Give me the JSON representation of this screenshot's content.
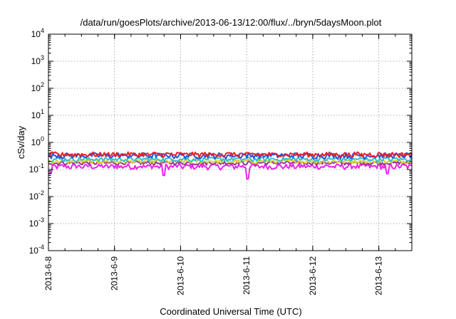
{
  "chart_data": {
    "type": "line",
    "title": "/data/run/goesPlots/archive/2013-06-13/12:00/flux/../bryn/5daysMoon.plot",
    "xlabel": "Coordinated Universal Time (UTC)",
    "ylabel": "cSv/day",
    "yscale": "log",
    "ylim": [
      0.0001,
      10000
    ],
    "y_ticks": [
      {
        "base": "10",
        "exp": "-4"
      },
      {
        "base": "10",
        "exp": "-3"
      },
      {
        "base": "10",
        "exp": "-2"
      },
      {
        "base": "10",
        "exp": "-1"
      },
      {
        "base": "10",
        "exp": "0"
      },
      {
        "base": "10",
        "exp": "1"
      },
      {
        "base": "10",
        "exp": "2"
      },
      {
        "base": "10",
        "exp": "3"
      },
      {
        "base": "10",
        "exp": "4"
      }
    ],
    "xlim": [
      "2013-06-08",
      "2013-06-13 12:00"
    ],
    "x_ticks": [
      "2013-6-8",
      "2013-6-9",
      "2013-6-10",
      "2013-6-11",
      "2013-6-12",
      "2013-6-13"
    ],
    "grid": true,
    "series": [
      {
        "color": "#e8202a",
        "level": 0.36,
        "jitter": 0.09
      },
      {
        "color": "#2255dd",
        "level": 0.33,
        "jitter": 0.1
      },
      {
        "color": "#33c0c8",
        "level": 0.24,
        "jitter": 0.08
      },
      {
        "color": "#d9d030",
        "level": 0.2,
        "jitter": 0.07
      },
      {
        "color": "#993399",
        "level": 0.175,
        "jitter": 0.07
      },
      {
        "color": "#ee22ee",
        "level": 0.13,
        "jitter": 0.1
      }
    ],
    "dips": [
      {
        "x": "2013-06-08 00:30",
        "y": 0.07
      },
      {
        "x": "2013-06-09 18:00",
        "y": 0.06
      },
      {
        "x": "2013-06-11 00:20",
        "y": 0.045
      },
      {
        "x": "2013-06-13 03:00",
        "y": 0.07
      }
    ]
  }
}
